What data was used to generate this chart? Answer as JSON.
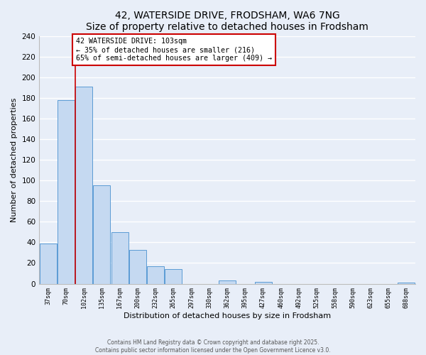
{
  "title": "42, WATERSIDE DRIVE, FRODSHAM, WA6 7NG",
  "subtitle": "Size of property relative to detached houses in Frodsham",
  "xlabel": "Distribution of detached houses by size in Frodsham",
  "ylabel": "Number of detached properties",
  "bin_labels": [
    "37sqm",
    "70sqm",
    "102sqm",
    "135sqm",
    "167sqm",
    "200sqm",
    "232sqm",
    "265sqm",
    "297sqm",
    "330sqm",
    "362sqm",
    "395sqm",
    "427sqm",
    "460sqm",
    "492sqm",
    "525sqm",
    "558sqm",
    "590sqm",
    "623sqm",
    "655sqm",
    "688sqm"
  ],
  "bar_values": [
    39,
    178,
    191,
    95,
    50,
    33,
    17,
    14,
    0,
    0,
    3,
    0,
    2,
    0,
    0,
    0,
    0,
    0,
    0,
    0,
    1
  ],
  "bar_color": "#c5d9f1",
  "bar_edge_color": "#5b9bd5",
  "property_line_bin": 2,
  "property_line_color": "#cc0000",
  "annotation_line1": "42 WATERSIDE DRIVE: 103sqm",
  "annotation_line2": "← 35% of detached houses are smaller (216)",
  "annotation_line3": "65% of semi-detached houses are larger (409) →",
  "annotation_box_color": "#ffffff",
  "annotation_box_edge": "#cc0000",
  "ylim": [
    0,
    240
  ],
  "yticks": [
    0,
    20,
    40,
    60,
    80,
    100,
    120,
    140,
    160,
    180,
    200,
    220,
    240
  ],
  "footer_line1": "Contains HM Land Registry data © Crown copyright and database right 2025.",
  "footer_line2": "Contains public sector information licensed under the Open Government Licence v3.0.",
  "bg_color": "#e8eef8",
  "grid_color": "#ffffff",
  "title_fontsize": 10,
  "subtitle_fontsize": 9
}
